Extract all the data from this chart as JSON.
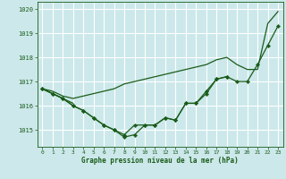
{
  "bg_color": "#cce8ea",
  "grid_color": "#ffffff",
  "line_color": "#1a5c1a",
  "marker_color": "#1a5c1a",
  "title": "Graphe pression niveau de la mer (hPa)",
  "title_color": "#1a5c1a",
  "ylim": [
    1014.3,
    1020.3
  ],
  "xlim": [
    -0.5,
    23.5
  ],
  "yticks": [
    1015,
    1016,
    1017,
    1018,
    1019,
    1020
  ],
  "xticks": [
    0,
    1,
    2,
    3,
    4,
    5,
    6,
    7,
    8,
    9,
    10,
    11,
    12,
    13,
    14,
    15,
    16,
    17,
    18,
    19,
    20,
    21,
    22,
    23
  ],
  "series": [
    {
      "x": [
        0,
        1,
        2,
        3,
        4,
        5,
        6,
        7,
        8,
        9,
        10,
        11,
        12,
        13,
        14,
        15,
        16,
        17,
        18,
        19,
        20,
        21,
        22,
        23
      ],
      "y": [
        1016.7,
        1016.6,
        1016.4,
        1016.3,
        1016.4,
        1016.5,
        1016.6,
        1016.7,
        1016.9,
        1017.0,
        1017.1,
        1017.2,
        1017.3,
        1017.4,
        1017.5,
        1017.6,
        1017.7,
        1017.9,
        1018.0,
        1017.7,
        1017.5,
        1017.5,
        1019.4,
        1019.9
      ],
      "marker": false,
      "lw": 0.9
    },
    {
      "x": [
        0,
        1,
        2,
        3,
        4,
        5,
        6,
        7,
        8,
        9,
        10,
        11,
        12,
        13,
        14,
        15,
        16,
        17,
        18
      ],
      "y": [
        1016.7,
        1016.5,
        1016.3,
        1016.0,
        1015.8,
        1015.5,
        1015.2,
        1015.0,
        1014.7,
        1014.8,
        1015.2,
        1015.2,
        1015.5,
        1015.4,
        1016.1,
        1016.1,
        1016.6,
        1017.1,
        1017.2
      ],
      "marker": true,
      "lw": 0.9
    },
    {
      "x": [
        0,
        1,
        2,
        3,
        4,
        5,
        6,
        7,
        8,
        9,
        10,
        11,
        12,
        13,
        14,
        15,
        16,
        17,
        18,
        19,
        20,
        21,
        22,
        23
      ],
      "y": [
        1016.7,
        1016.5,
        1016.3,
        1016.0,
        1015.8,
        1015.5,
        1015.2,
        1015.0,
        1014.8,
        1015.2,
        1015.2,
        1015.2,
        1015.5,
        1015.4,
        1016.1,
        1016.1,
        1016.5,
        1017.1,
        1017.2,
        1017.0,
        1017.0,
        1017.7,
        1018.5,
        1019.3
      ],
      "marker": true,
      "lw": 0.9
    },
    {
      "x": [
        0,
        1,
        2,
        3
      ],
      "y": [
        1016.7,
        1016.5,
        1016.3,
        1016.1
      ],
      "marker": false,
      "lw": 0.9
    }
  ]
}
